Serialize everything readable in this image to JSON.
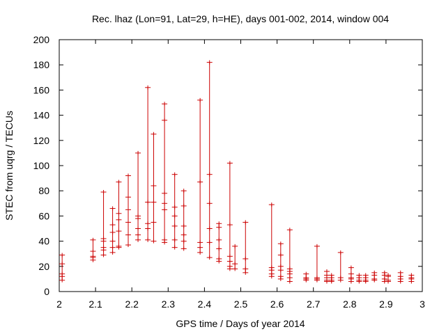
{
  "chart_data": {
    "type": "scatter",
    "style": "vertical range bars with tick markers",
    "title": "Rec. lhaz (Lon=91, Lat=29, h=HE), days 001-002, 2014, window 004",
    "xlabel": "GPS time / Days of year 2014",
    "ylabel": "STEC from uqrg / TECUs",
    "xlim": [
      2,
      3
    ],
    "ylim": [
      0,
      200
    ],
    "xticks": [
      2,
      2.1,
      2.2,
      2.3,
      2.4,
      2.5,
      2.6,
      2.7,
      2.8,
      2.9,
      3
    ],
    "xtick_labels": [
      "2",
      "2.1",
      "2.2",
      "2.3",
      "2.4",
      "2.5",
      "2.6",
      "2.7",
      "2.8",
      "2.9",
      "3"
    ],
    "yticks": [
      0,
      20,
      40,
      60,
      80,
      100,
      120,
      140,
      160,
      180,
      200
    ],
    "ytick_labels": [
      "0",
      "20",
      "40",
      "60",
      "80",
      "100",
      "120",
      "140",
      "160",
      "180",
      "200"
    ],
    "grid": false,
    "legend": "none",
    "color": "#cc0000",
    "series": [
      {
        "points": [
          {
            "x": 2.008,
            "values": [
              9,
              12,
              14,
              22,
              29
            ]
          },
          {
            "x": 2.093,
            "values": [
              25,
              27,
              28,
              32,
              41
            ]
          },
          {
            "x": 2.122,
            "values": [
              29,
              33,
              35,
              40,
              42,
              79
            ]
          },
          {
            "x": 2.147,
            "values": [
              31,
              35,
              40,
              47,
              53,
              66
            ]
          },
          {
            "x": 2.164,
            "values": [
              35,
              36,
              48,
              57,
              62,
              87
            ]
          },
          {
            "x": 2.19,
            "values": [
              37,
              45,
              55,
              65,
              75,
              92
            ]
          },
          {
            "x": 2.217,
            "values": [
              41,
              45,
              50,
              58,
              60,
              110
            ]
          },
          {
            "x": 2.244,
            "values": [
              41,
              50,
              54,
              71,
              162
            ]
          },
          {
            "x": 2.26,
            "values": [
              40,
              55,
              71,
              84,
              125
            ]
          },
          {
            "x": 2.29,
            "values": [
              39,
              41,
              65,
              70,
              78,
              136,
              149
            ]
          },
          {
            "x": 2.318,
            "values": [
              35,
              41,
              52,
              60,
              67,
              93
            ]
          },
          {
            "x": 2.343,
            "values": [
              34,
              40,
              45,
              52,
              68,
              80
            ]
          },
          {
            "x": 2.388,
            "values": [
              31,
              35,
              39,
              87,
              152
            ]
          },
          {
            "x": 2.414,
            "values": [
              27,
              39,
              50,
              70,
              93,
              182
            ]
          },
          {
            "x": 2.44,
            "values": [
              24,
              26,
              34,
              41,
              51,
              54
            ]
          },
          {
            "x": 2.47,
            "values": [
              18,
              20,
              24,
              28,
              53,
              102
            ]
          },
          {
            "x": 2.484,
            "values": [
              18,
              22,
              36
            ]
          },
          {
            "x": 2.513,
            "values": [
              15,
              18,
              26,
              55
            ]
          },
          {
            "x": 2.585,
            "values": [
              12,
              14,
              17,
              19,
              69
            ]
          },
          {
            "x": 2.61,
            "values": [
              10,
              12,
              17,
              20,
              29,
              38
            ]
          },
          {
            "x": 2.635,
            "values": [
              8,
              11,
              14,
              16,
              18,
              49
            ]
          },
          {
            "x": 2.68,
            "values": [
              9,
              10,
              11,
              14
            ]
          },
          {
            "x": 2.71,
            "values": [
              9,
              10,
              11,
              36
            ]
          },
          {
            "x": 2.737,
            "values": [
              8,
              9,
              11,
              13,
              16
            ]
          },
          {
            "x": 2.75,
            "values": [
              8,
              9,
              11,
              13
            ]
          },
          {
            "x": 2.775,
            "values": [
              9,
              11,
              31
            ]
          },
          {
            "x": 2.804,
            "values": [
              8,
              10,
              11,
              14,
              19
            ]
          },
          {
            "x": 2.826,
            "values": [
              8,
              9,
              11,
              13
            ]
          },
          {
            "x": 2.844,
            "values": [
              8,
              9,
              11,
              13
            ]
          },
          {
            "x": 2.868,
            "values": [
              9,
              10,
              13,
              15
            ]
          },
          {
            "x": 2.896,
            "values": [
              8,
              10,
              13,
              15
            ]
          },
          {
            "x": 2.906,
            "values": [
              8,
              9,
              12,
              13
            ]
          },
          {
            "x": 2.94,
            "values": [
              8,
              10,
              12,
              15
            ]
          },
          {
            "x": 2.97,
            "values": [
              8,
              10,
              11,
              13
            ]
          }
        ]
      }
    ]
  }
}
